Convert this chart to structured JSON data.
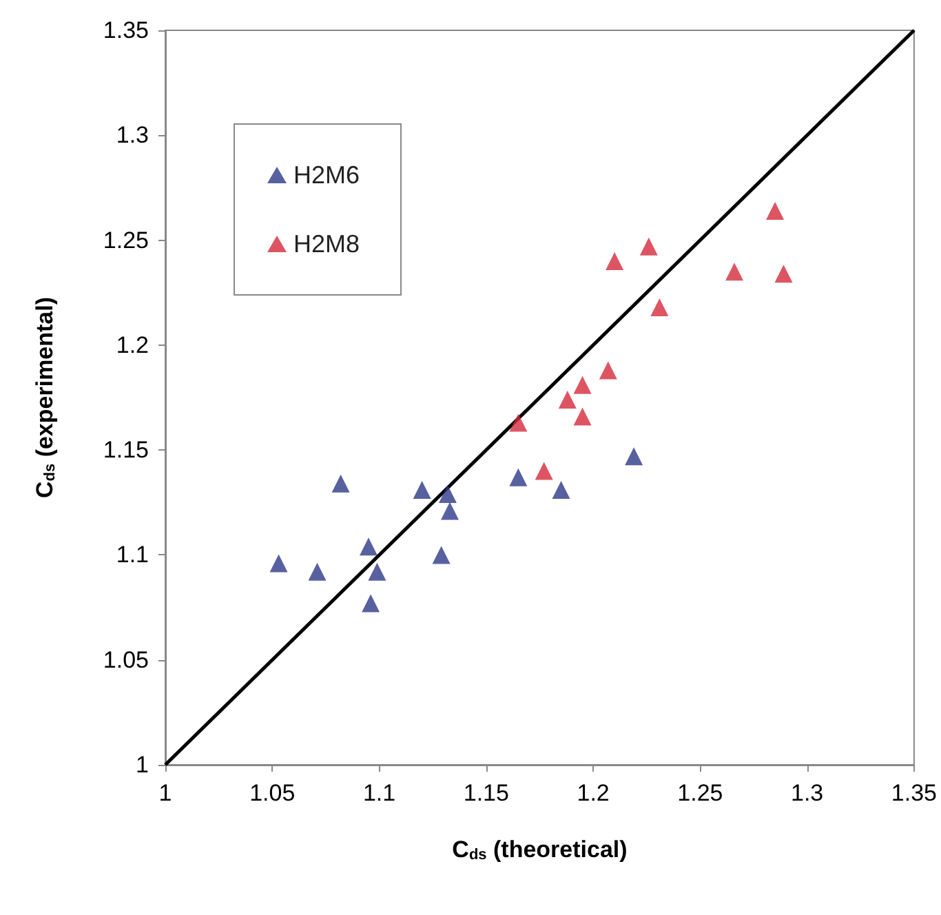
{
  "chart_data": {
    "type": "scatter",
    "xlabel": "C$_{ds}$ (theoretical)",
    "ylabel": "C$_{ds}$ (experimental)",
    "xlim": [
      1,
      1.35
    ],
    "xticks": [
      1,
      1.05,
      1.1,
      1.15,
      1.2,
      1.25,
      1.3,
      1.35
    ],
    "ylim": [
      1,
      1.35
    ],
    "yticks": [
      1,
      1.05,
      1.1,
      1.15,
      1.2,
      1.25,
      1.3,
      1.35
    ],
    "grid": false,
    "legend": "top left",
    "marker": "triangle",
    "series": [
      {
        "name": "H2M6",
        "color": "#2e3a87",
        "x": [
          1.053,
          1.071,
          1.082,
          1.095,
          1.099,
          1.096,
          1.12,
          1.129,
          1.132,
          1.133,
          1.165,
          1.185,
          1.219
        ],
        "values": [
          1.096,
          1.092,
          1.134,
          1.104,
          1.092,
          1.077,
          1.131,
          1.1,
          1.129,
          1.121,
          1.137,
          1.131,
          1.147
        ]
      },
      {
        "name": "H2M8",
        "color": "#d42a3c",
        "x": [
          1.165,
          1.177,
          1.188,
          1.195,
          1.195,
          1.207,
          1.21,
          1.226,
          1.231,
          1.266,
          1.285,
          1.289
        ],
        "values": [
          1.163,
          1.14,
          1.174,
          1.181,
          1.166,
          1.188,
          1.24,
          1.247,
          1.218,
          1.235,
          1.264,
          1.234
        ]
      },
      {
        "type": "line",
        "color": "#000000",
        "x": [
          1,
          1.35
        ],
        "values": [
          1,
          1.35
        ],
        "marker": "none",
        "line_style": "solid"
      }
    ]
  }
}
